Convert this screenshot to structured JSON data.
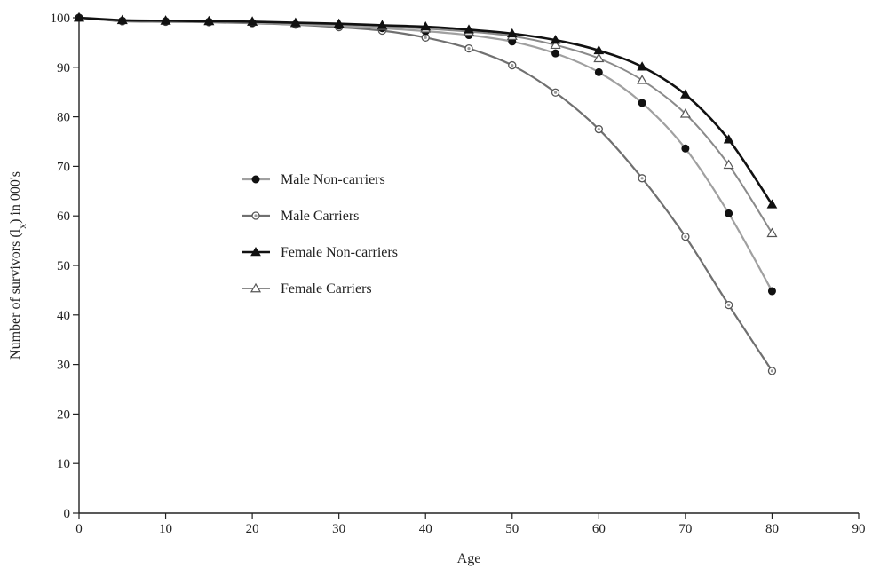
{
  "chart_data": {
    "type": "line",
    "xlabel": "Age",
    "ylabel_parts": {
      "pre": "Number of survivors (l",
      "sub": "x",
      "post": ") in 000's"
    },
    "xlim": [
      0,
      90
    ],
    "ylim": [
      0,
      100
    ],
    "x_ticks": [
      0,
      10,
      20,
      30,
      40,
      50,
      60,
      70,
      80,
      90
    ],
    "y_ticks": [
      0,
      10,
      20,
      30,
      40,
      50,
      60,
      70,
      80,
      90,
      100
    ],
    "grid": false,
    "legend_position": "center-left",
    "x": [
      0,
      5,
      10,
      15,
      20,
      25,
      30,
      35,
      40,
      45,
      50,
      55,
      60,
      65,
      70,
      75,
      80
    ],
    "series": [
      {
        "name": "Male Non-carriers",
        "marker": "filled-circle",
        "line_color": "#a0a0a0",
        "marker_color": "#111111",
        "values": [
          100,
          99.4,
          99.3,
          99.2,
          99.0,
          98.7,
          98.4,
          97.9,
          97.3,
          96.5,
          95.2,
          92.8,
          89.0,
          82.8,
          73.6,
          60.5,
          44.8
        ]
      },
      {
        "name": "Male Carriers",
        "marker": "open-circle",
        "line_color": "#707070",
        "marker_color": "#555555",
        "values": [
          100,
          99.3,
          99.2,
          99.1,
          98.9,
          98.6,
          98.1,
          97.4,
          96.0,
          93.8,
          90.4,
          84.9,
          77.5,
          67.6,
          55.8,
          42.0,
          28.7
        ]
      },
      {
        "name": "Female Non-carriers",
        "marker": "filled-triangle",
        "line_color": "#111111",
        "marker_color": "#111111",
        "values": [
          100,
          99.5,
          99.4,
          99.3,
          99.2,
          99.0,
          98.8,
          98.5,
          98.2,
          97.6,
          96.8,
          95.5,
          93.4,
          90.1,
          84.5,
          75.4,
          62.3
        ]
      },
      {
        "name": "Female Carriers",
        "marker": "open-triangle",
        "line_color": "#8a8a8a",
        "marker_color": "#555555",
        "values": [
          100,
          99.5,
          99.4,
          99.3,
          99.2,
          98.9,
          98.7,
          98.3,
          97.8,
          97.2,
          96.3,
          94.5,
          91.8,
          87.4,
          80.6,
          70.3,
          56.5
        ]
      }
    ]
  }
}
